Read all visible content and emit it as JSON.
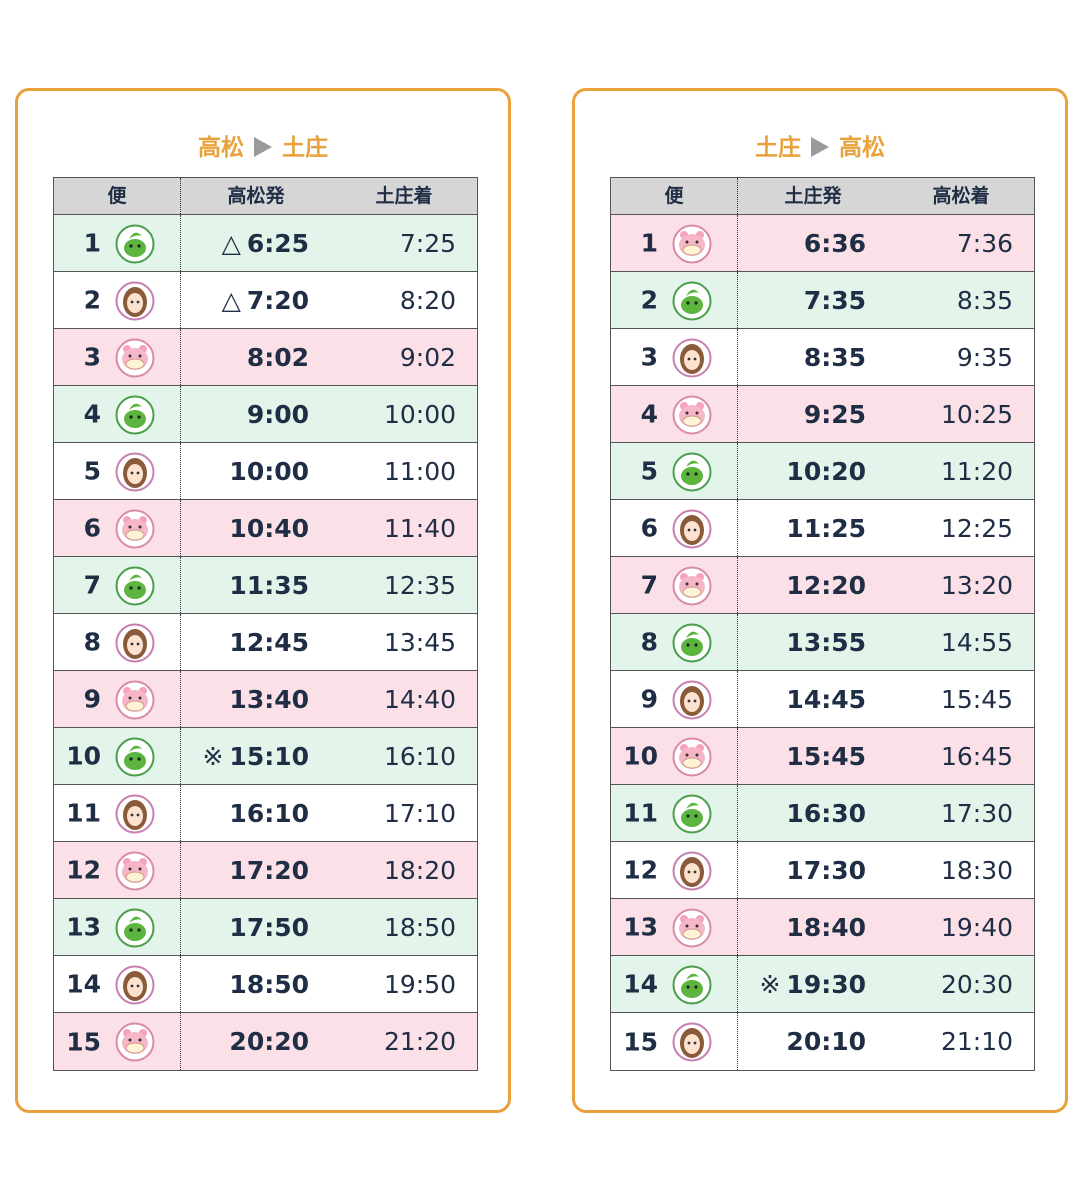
{
  "panels": [
    {
      "title": {
        "from": "高松",
        "to": "土庄"
      },
      "headers": [
        "便",
        "高松発",
        "土庄着"
      ],
      "rows": [
        {
          "no": 1,
          "mark": "△",
          "dep": "6:25",
          "arr": "7:25",
          "color": "#e3f5ea"
        },
        {
          "no": 2,
          "mark": "△",
          "dep": "7:20",
          "arr": "8:20",
          "color": "#ffffff"
        },
        {
          "no": 3,
          "dep": "8:02",
          "arr": "9:02",
          "color": "#fbe1e7"
        },
        {
          "no": 4,
          "dep": "9:00",
          "arr": "10:00",
          "color": "#e3f5ea"
        },
        {
          "no": 5,
          "dep": "10:00",
          "arr": "11:00",
          "color": "#ffffff"
        },
        {
          "no": 6,
          "dep": "10:40",
          "arr": "11:40",
          "color": "#fbe1e7"
        },
        {
          "no": 7,
          "dep": "11:35",
          "arr": "12:35",
          "color": "#e3f5ea"
        },
        {
          "no": 8,
          "dep": "12:45",
          "arr": "13:45",
          "color": "#ffffff"
        },
        {
          "no": 9,
          "dep": "13:40",
          "arr": "14:40",
          "color": "#fbe1e7"
        },
        {
          "no": 10,
          "mark": "※",
          "dep": "15:10",
          "arr": "16:10",
          "color": "#e3f5ea"
        },
        {
          "no": 11,
          "dep": "16:10",
          "arr": "17:10",
          "color": "#ffffff"
        },
        {
          "no": 12,
          "dep": "17:20",
          "arr": "18:20",
          "color": "#fbe1e7"
        },
        {
          "no": 13,
          "dep": "17:50",
          "arr": "18:50",
          "color": "#e3f5ea"
        },
        {
          "no": 14,
          "dep": "18:50",
          "arr": "19:50",
          "color": "#ffffff"
        },
        {
          "no": 15,
          "dep": "20:20",
          "arr": "21:20",
          "color": "#fbe1e7"
        }
      ]
    },
    {
      "title": {
        "from": "土庄",
        "to": "高松"
      },
      "headers": [
        "便",
        "土庄発",
        "高松着"
      ],
      "rows": [
        {
          "no": 1,
          "dep": "6:36",
          "arr": "7:36",
          "color": "#fbe1e7"
        },
        {
          "no": 2,
          "dep": "7:35",
          "arr": "8:35",
          "color": "#e3f5ea"
        },
        {
          "no": 3,
          "dep": "8:35",
          "arr": "9:35",
          "color": "#ffffff"
        },
        {
          "no": 4,
          "dep": "9:25",
          "arr": "10:25",
          "color": "#fbe1e7"
        },
        {
          "no": 5,
          "dep": "10:20",
          "arr": "11:20",
          "color": "#e3f5ea"
        },
        {
          "no": 6,
          "dep": "11:25",
          "arr": "12:25",
          "color": "#ffffff"
        },
        {
          "no": 7,
          "dep": "12:20",
          "arr": "13:20",
          "color": "#fbe1e7"
        },
        {
          "no": 8,
          "dep": "13:55",
          "arr": "14:55",
          "color": "#e3f5ea"
        },
        {
          "no": 9,
          "dep": "14:45",
          "arr": "15:45",
          "color": "#ffffff"
        },
        {
          "no": 10,
          "dep": "15:45",
          "arr": "16:45",
          "color": "#fbe1e7"
        },
        {
          "no": 11,
          "dep": "16:30",
          "arr": "17:30",
          "color": "#e3f5ea"
        },
        {
          "no": 12,
          "dep": "17:30",
          "arr": "18:30",
          "color": "#ffffff"
        },
        {
          "no": 13,
          "dep": "18:40",
          "arr": "19:40",
          "color": "#fbe1e7"
        },
        {
          "no": 14,
          "mark": "※",
          "dep": "19:30",
          "arr": "20:30",
          "color": "#e3f5ea"
        },
        {
          "no": 15,
          "dep": "20:10",
          "arr": "21:10",
          "color": "#ffffff"
        }
      ]
    }
  ]
}
